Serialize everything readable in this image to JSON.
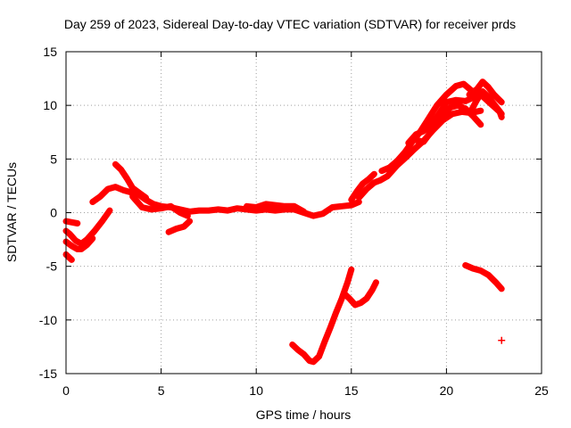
{
  "chart_data": {
    "type": "scatter",
    "title": "Day 259 of 2023, Sidereal Day-to-day VTEC variation (SDTVAR) for receiver prds",
    "xlabel": "GPS time / hours",
    "ylabel": "SDTVAR / TECUs",
    "xlim": [
      0,
      25
    ],
    "ylim": [
      -15,
      15
    ],
    "xticks": [
      0,
      5,
      10,
      15,
      20,
      25
    ],
    "yticks": [
      -15,
      -10,
      -5,
      0,
      5,
      10,
      15
    ],
    "grid": true,
    "legend": "none",
    "marker": "plus",
    "color": "#ff0000",
    "series": [
      {
        "points": [
          [
            0.0,
            -0.8
          ],
          [
            0.3,
            -0.9
          ],
          [
            0.6,
            -1.0
          ]
        ]
      },
      {
        "points": [
          [
            0.0,
            -1.7
          ],
          [
            0.2,
            -2.0
          ],
          [
            0.5,
            -2.6
          ],
          [
            0.8,
            -2.9
          ],
          [
            1.1,
            -2.5
          ],
          [
            1.5,
            -1.7
          ],
          [
            1.9,
            -0.8
          ],
          [
            2.3,
            0.2
          ]
        ]
      },
      {
        "points": [
          [
            0.0,
            -2.7
          ],
          [
            0.3,
            -3.1
          ],
          [
            0.6,
            -3.4
          ],
          [
            0.8,
            -3.4
          ],
          [
            1.1,
            -3.0
          ],
          [
            1.4,
            -2.4
          ]
        ]
      },
      {
        "points": [
          [
            0.0,
            -3.9
          ],
          [
            0.3,
            -4.4
          ]
        ]
      },
      {
        "points": [
          [
            1.4,
            1.0
          ],
          [
            1.8,
            1.5
          ],
          [
            2.2,
            2.2
          ],
          [
            2.6,
            2.4
          ],
          [
            3.0,
            2.1
          ],
          [
            3.4,
            1.9
          ],
          [
            3.8,
            1.7
          ],
          [
            4.2,
            1.2
          ],
          [
            4.6,
            0.8
          ],
          [
            5.0,
            0.6
          ],
          [
            5.5,
            0.5
          ],
          [
            6.0,
            0.3
          ],
          [
            6.5,
            0.1
          ],
          [
            7.0,
            0.2
          ],
          [
            7.5,
            0.2
          ],
          [
            8.0,
            0.3
          ],
          [
            8.5,
            0.2
          ],
          [
            9.0,
            0.4
          ],
          [
            9.5,
            0.3
          ],
          [
            10.0,
            0.2
          ],
          [
            10.5,
            0.3
          ],
          [
            11.0,
            0.2
          ],
          [
            11.5,
            0.3
          ],
          [
            12.0,
            0.3
          ],
          [
            12.5,
            0.0
          ],
          [
            13.0,
            -0.3
          ],
          [
            13.5,
            -0.1
          ],
          [
            14.0,
            0.5
          ],
          [
            14.5,
            0.6
          ],
          [
            15.0,
            0.7
          ],
          [
            15.4,
            1.0
          ]
        ]
      },
      {
        "points": [
          [
            2.6,
            4.5
          ],
          [
            2.9,
            4.0
          ],
          [
            3.2,
            3.2
          ],
          [
            3.5,
            2.3
          ],
          [
            3.8,
            1.9
          ],
          [
            4.2,
            1.4
          ]
        ]
      },
      {
        "points": [
          [
            3.5,
            1.5
          ],
          [
            4.0,
            0.5
          ],
          [
            4.5,
            0.3
          ],
          [
            5.0,
            0.4
          ],
          [
            5.5,
            0.6
          ],
          [
            6.0,
            0.0
          ],
          [
            6.4,
            -0.3
          ]
        ]
      },
      {
        "points": [
          [
            5.4,
            -1.8
          ],
          [
            5.8,
            -1.5
          ],
          [
            6.2,
            -1.3
          ],
          [
            6.5,
            -0.8
          ]
        ]
      },
      {
        "points": [
          [
            9.5,
            0.6
          ],
          [
            10.0,
            0.5
          ],
          [
            10.5,
            0.8
          ],
          [
            11.0,
            0.7
          ],
          [
            11.5,
            0.6
          ],
          [
            12.0,
            0.6
          ],
          [
            12.5,
            0.1
          ]
        ]
      },
      {
        "points": [
          [
            15.0,
            1.2
          ],
          [
            15.3,
            2.0
          ],
          [
            15.6,
            2.7
          ],
          [
            15.9,
            3.1
          ],
          [
            16.2,
            3.6
          ]
        ]
      },
      {
        "points": [
          [
            15.4,
            1.4
          ],
          [
            15.8,
            2.2
          ],
          [
            16.2,
            2.8
          ],
          [
            16.5,
            3.0
          ],
          [
            16.9,
            3.4
          ],
          [
            17.4,
            4.4
          ],
          [
            17.9,
            5.2
          ],
          [
            18.3,
            5.9
          ],
          [
            18.8,
            6.7
          ],
          [
            19.3,
            7.7
          ],
          [
            19.8,
            8.6
          ],
          [
            20.3,
            9.2
          ],
          [
            20.8,
            9.4
          ],
          [
            21.3,
            9.3
          ],
          [
            21.8,
            9.5
          ]
        ]
      },
      {
        "points": [
          [
            16.6,
            3.9
          ],
          [
            17.0,
            4.2
          ],
          [
            17.4,
            4.8
          ],
          [
            17.8,
            5.6
          ],
          [
            18.2,
            6.6
          ],
          [
            18.6,
            7.5
          ],
          [
            19.0,
            8.6
          ],
          [
            19.5,
            10.0
          ],
          [
            20.0,
            11.0
          ],
          [
            20.5,
            11.8
          ],
          [
            20.9,
            12.0
          ],
          [
            21.3,
            11.4
          ],
          [
            21.8,
            11.0
          ],
          [
            22.3,
            10.2
          ],
          [
            22.8,
            9.4
          ],
          [
            22.9,
            8.9
          ]
        ]
      },
      {
        "points": [
          [
            18.0,
            6.5
          ],
          [
            18.4,
            7.3
          ],
          [
            18.8,
            7.6
          ],
          [
            19.2,
            8.2
          ],
          [
            19.6,
            9.2
          ],
          [
            20.0,
            10.3
          ],
          [
            20.5,
            10.5
          ],
          [
            21.0,
            10.4
          ],
          [
            21.5,
            10.8
          ]
        ]
      },
      {
        "points": [
          [
            18.3,
            6.8
          ],
          [
            18.8,
            6.6
          ],
          [
            19.3,
            7.8
          ],
          [
            19.7,
            8.9
          ],
          [
            20.2,
            9.8
          ],
          [
            20.6,
            10.0
          ],
          [
            21.0,
            9.7
          ],
          [
            21.4,
            9.0
          ],
          [
            21.8,
            8.2
          ]
        ]
      },
      {
        "points": [
          [
            21.2,
            11.0
          ],
          [
            21.6,
            11.5
          ],
          [
            21.9,
            12.2
          ],
          [
            22.2,
            11.7
          ],
          [
            22.5,
            11.0
          ],
          [
            22.9,
            10.3
          ]
        ]
      },
      {
        "points": [
          [
            21.3,
            9.5
          ],
          [
            21.6,
            10.5
          ],
          [
            21.9,
            11.3
          ],
          [
            22.2,
            10.8
          ],
          [
            22.6,
            9.9
          ],
          [
            22.9,
            9.2
          ]
        ]
      },
      {
        "points": [
          [
            11.9,
            -12.3
          ],
          [
            12.2,
            -12.8
          ],
          [
            12.5,
            -13.2
          ],
          [
            12.8,
            -13.8
          ],
          [
            13.0,
            -13.9
          ],
          [
            13.3,
            -13.4
          ],
          [
            13.6,
            -12.0
          ],
          [
            13.9,
            -10.7
          ],
          [
            14.2,
            -9.3
          ],
          [
            14.5,
            -8.0
          ],
          [
            14.8,
            -6.5
          ],
          [
            15.0,
            -5.3
          ]
        ]
      },
      {
        "points": [
          [
            14.6,
            -7.5
          ],
          [
            14.9,
            -8.0
          ],
          [
            15.2,
            -8.6
          ],
          [
            15.5,
            -8.4
          ],
          [
            15.8,
            -8.0
          ],
          [
            16.1,
            -7.2
          ],
          [
            16.3,
            -6.5
          ]
        ]
      },
      {
        "points": [
          [
            21.0,
            -4.9
          ],
          [
            21.4,
            -5.2
          ],
          [
            21.8,
            -5.4
          ],
          [
            22.2,
            -5.8
          ],
          [
            22.6,
            -6.5
          ],
          [
            22.9,
            -7.1
          ]
        ]
      },
      {
        "points": [
          [
            22.9,
            -11.9
          ]
        ]
      }
    ]
  }
}
